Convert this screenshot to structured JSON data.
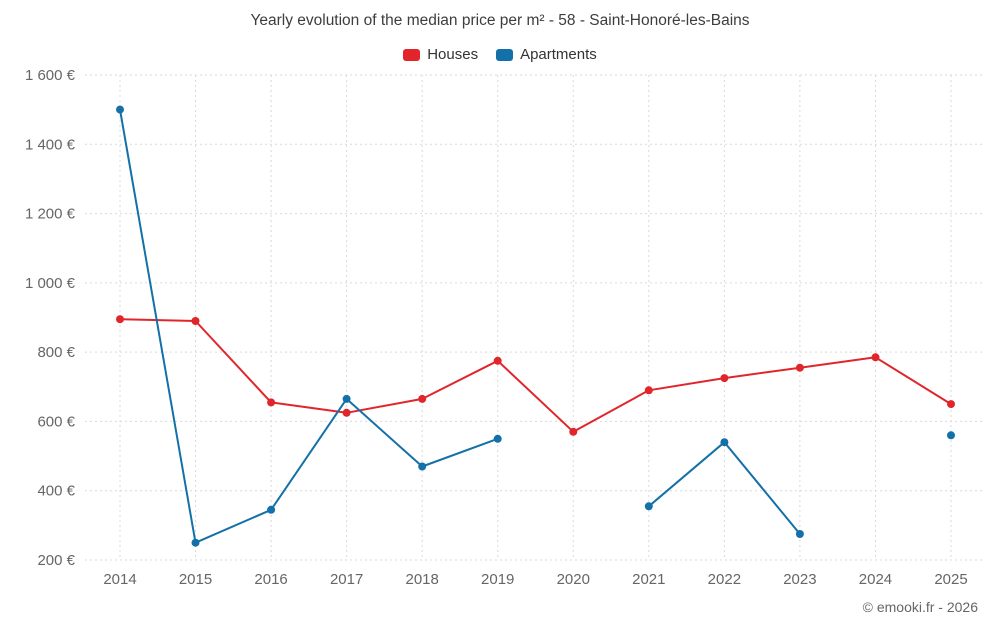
{
  "chart_data": {
    "type": "line",
    "title": "Yearly evolution of the median price per m² - 58 - Saint-Honoré-les-Bains",
    "x": [
      2014,
      2015,
      2016,
      2017,
      2018,
      2019,
      2020,
      2021,
      2022,
      2023,
      2024,
      2025
    ],
    "series": [
      {
        "name": "Houses",
        "color": "#e0262b",
        "values": [
          895,
          890,
          655,
          625,
          665,
          775,
          570,
          690,
          725,
          755,
          785,
          650
        ]
      },
      {
        "name": "Apartments",
        "color": "#1470a8",
        "values": [
          1500,
          250,
          345,
          665,
          470,
          550,
          null,
          355,
          540,
          275,
          null,
          560
        ]
      }
    ],
    "ylim": [
      200,
      1600
    ],
    "y_ticks": [
      200,
      400,
      600,
      800,
      1000,
      1200,
      1400,
      1600
    ],
    "y_tick_suffix": " €",
    "xlabel": "",
    "ylabel": "",
    "grid": true,
    "legend_position": "top"
  },
  "footer": {
    "copyright": "© emooki.fr - 2026"
  }
}
